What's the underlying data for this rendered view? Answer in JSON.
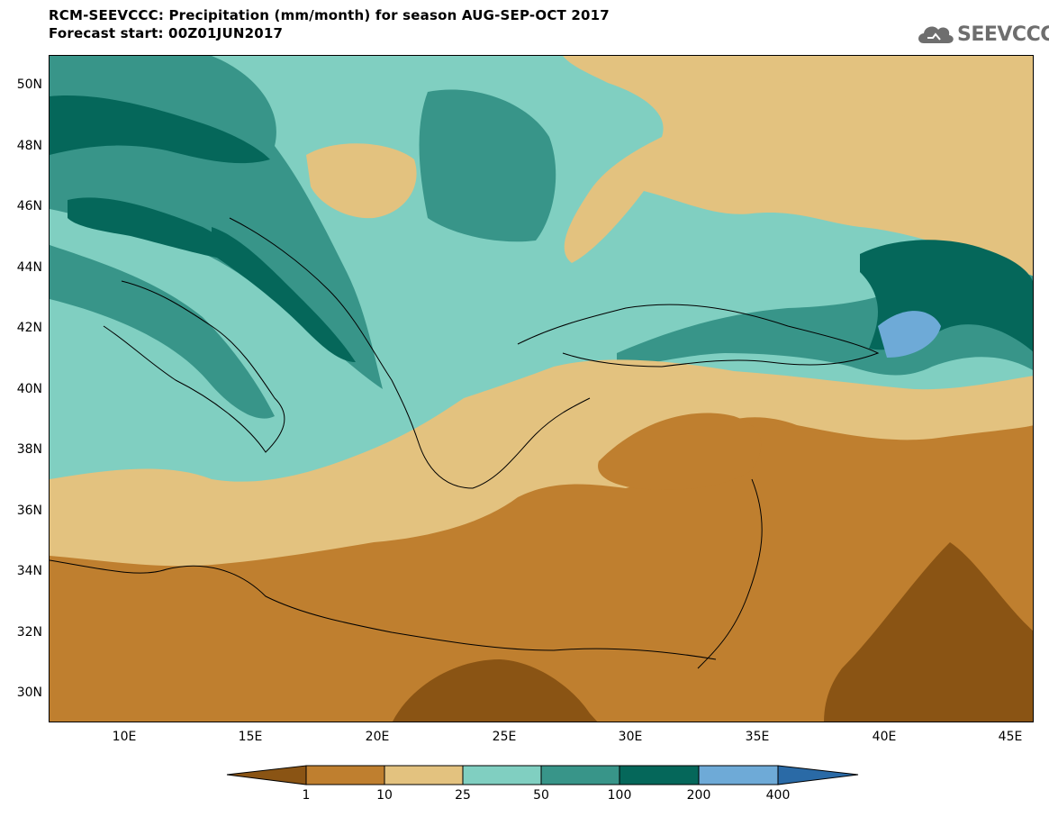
{
  "header": {
    "title": "RCM-SEEVCCC: Precipitation (mm/month) for season AUG-SEP-OCT 2017",
    "subtitle": "Forecast start: 00Z01JUN2017",
    "logo_text": "SEEVCCC"
  },
  "map": {
    "lat_ticks": [
      "50N",
      "48N",
      "46N",
      "44N",
      "42N",
      "40N",
      "38N",
      "36N",
      "34N",
      "32N",
      "30N"
    ],
    "lon_ticks": [
      "10E",
      "15E",
      "20E",
      "25E",
      "30E",
      "35E",
      "40E",
      "45E"
    ],
    "lat_range": [
      29,
      51
    ],
    "lon_range": [
      7,
      46
    ]
  },
  "colorbar": {
    "labels": [
      "1",
      "10",
      "25",
      "50",
      "100",
      "200",
      "400"
    ],
    "colors": [
      "#8a5414",
      "#bf7f2f",
      "#e3c27f",
      "#80cfc1",
      "#389589",
      "#05675a",
      "#6eaad7",
      "#2a6aa6"
    ]
  }
}
